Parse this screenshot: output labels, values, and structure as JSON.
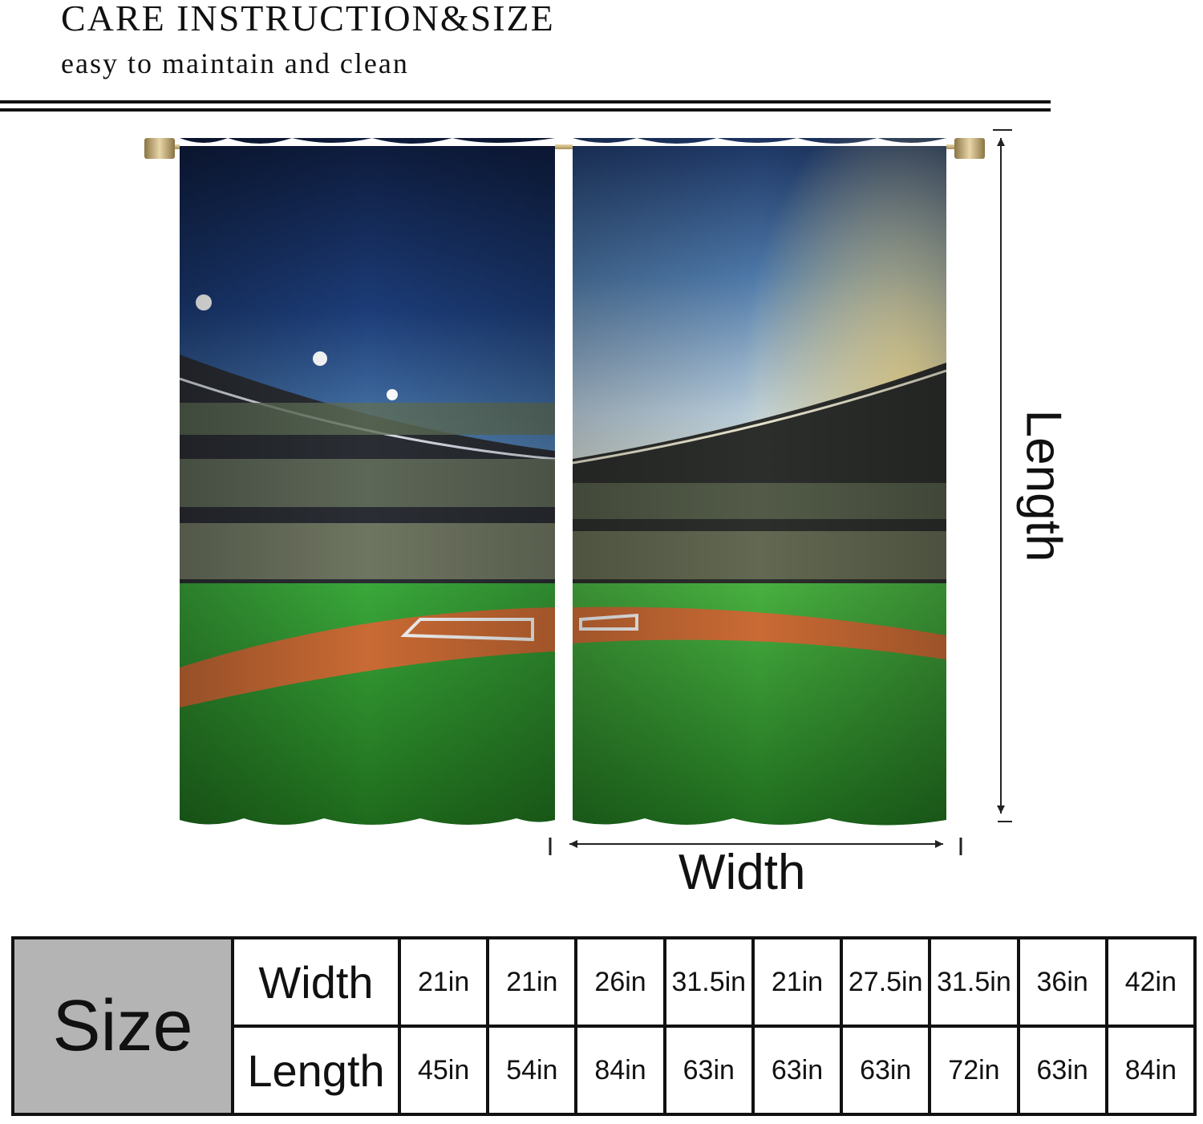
{
  "header": {
    "title": "CARE INSTRUCTION&SIZE",
    "subtitle": "easy to maintain and clean"
  },
  "illustration": {
    "width_label": "Width",
    "length_label": "Length"
  },
  "size_table": {
    "header": "Size",
    "rows": [
      {
        "label": "Width",
        "values": [
          "21in",
          "21in",
          "26in",
          "31.5in",
          "21in",
          "27.5in",
          "31.5in",
          "36in",
          "42in"
        ]
      },
      {
        "label": "Length",
        "values": [
          "45in",
          "54in",
          "84in",
          "63in",
          "63in",
          "63in",
          "72in",
          "63in",
          "84in"
        ]
      }
    ]
  }
}
